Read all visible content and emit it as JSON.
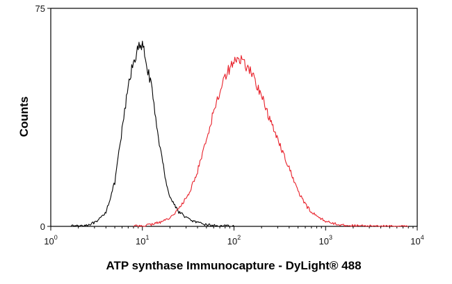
{
  "chart_data": {
    "type": "line",
    "title": "",
    "xlabel": "ATP synthase Immunocapture - DyLight® 488",
    "ylabel": "Counts",
    "xscale": "log",
    "xlim": [
      1,
      10000
    ],
    "ylim": [
      0,
      75
    ],
    "xticks": [
      {
        "value": 1,
        "base": "10",
        "exp": "0"
      },
      {
        "value": 10,
        "base": "10",
        "exp": "1"
      },
      {
        "value": 100,
        "base": "10",
        "exp": "2"
      },
      {
        "value": 1000,
        "base": "10",
        "exp": "3"
      },
      {
        "value": 10000,
        "base": "10",
        "exp": "4"
      }
    ],
    "yticks": [
      {
        "value": 0,
        "label": "0"
      },
      {
        "value": 75,
        "label": "75"
      }
    ],
    "grid": false,
    "legend": "none",
    "series": [
      {
        "color": "#000000",
        "x": [
          1.6,
          2.5,
          3.2,
          4.0,
          5.0,
          6.0,
          7.0,
          8.0,
          9.0,
          10.0,
          11.0,
          12.5,
          14.0,
          16.0,
          18.0,
          20.0,
          25.0,
          32.0,
          40.0,
          50.0,
          65.0,
          80.0,
          100.0
        ],
        "y": [
          0,
          0.5,
          1.5,
          5,
          15,
          33,
          48,
          57,
          61,
          62,
          57,
          48,
          37,
          25,
          16,
          10,
          5,
          2.5,
          1.2,
          0.6,
          0.2,
          0.1,
          0
        ]
      },
      {
        "color": "#e8202a",
        "x": [
          8,
          12,
          16,
          20,
          25,
          32,
          40,
          50,
          63,
          80,
          100,
          125,
          160,
          200,
          250,
          320,
          400,
          500,
          630,
          800,
          1000,
          1300,
          1600,
          2000,
          3000,
          5000,
          8000
        ],
        "y": [
          0,
          0.5,
          1.5,
          3,
          6,
          11,
          19,
          30,
          42,
          52,
          57,
          57,
          52,
          45,
          36,
          28,
          20,
          12,
          6.5,
          3.5,
          1.8,
          0.8,
          0.4,
          0.2,
          0.1,
          0,
          0
        ]
      }
    ]
  }
}
